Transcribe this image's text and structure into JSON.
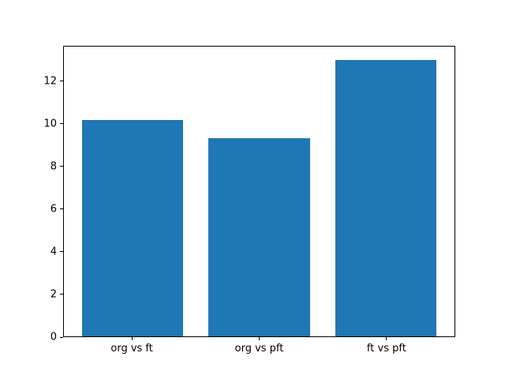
{
  "figure": {
    "background_color": "#ffffff",
    "text_color": "#000000",
    "spine_color": "#000000"
  },
  "chart_data": {
    "type": "bar",
    "title": "",
    "xlabel": "",
    "ylabel": "",
    "categories": [
      "org vs ft",
      "org vs pft",
      "ft vs pft"
    ],
    "values": [
      10.2,
      9.35,
      13.0
    ],
    "bar_color": "#1f77b4",
    "bar_width": 0.8,
    "xlim": [
      -0.54,
      2.54
    ],
    "ylim": [
      0,
      13.65
    ],
    "yticks": [
      0,
      2,
      4,
      6,
      8,
      10,
      12
    ],
    "grid": false,
    "legend": null
  }
}
